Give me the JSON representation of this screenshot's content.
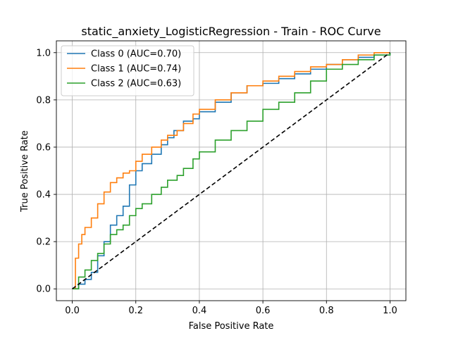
{
  "chart_data": {
    "type": "line",
    "title": "static_anxiety_LogisticRegression - Train - ROC Curve",
    "xlabel": "False Positive Rate",
    "ylabel": "True Positive Rate",
    "xlim": [
      -0.05,
      1.05
    ],
    "ylim": [
      -0.05,
      1.05
    ],
    "xticks": [
      "0.0",
      "0.2",
      "0.4",
      "0.6",
      "0.8",
      "1.0"
    ],
    "yticks": [
      "0.0",
      "0.2",
      "0.4",
      "0.6",
      "0.8",
      "1.0"
    ],
    "grid": true,
    "legend_position": "upper-left",
    "series": [
      {
        "name": "Class 0 (AUC=0.70)",
        "color": "#1f77b4",
        "x": [
          0.0,
          0.02,
          0.04,
          0.06,
          0.08,
          0.1,
          0.12,
          0.14,
          0.16,
          0.18,
          0.2,
          0.22,
          0.25,
          0.28,
          0.3,
          0.32,
          0.35,
          0.38,
          0.4,
          0.45,
          0.5,
          0.55,
          0.6,
          0.65,
          0.7,
          0.75,
          0.8,
          0.85,
          0.9,
          0.95,
          1.0
        ],
        "y": [
          0.0,
          0.02,
          0.04,
          0.07,
          0.14,
          0.2,
          0.27,
          0.31,
          0.35,
          0.44,
          0.5,
          0.53,
          0.57,
          0.61,
          0.64,
          0.67,
          0.71,
          0.72,
          0.75,
          0.79,
          0.83,
          0.86,
          0.87,
          0.89,
          0.91,
          0.93,
          0.95,
          0.97,
          0.98,
          0.99,
          1.0
        ]
      },
      {
        "name": "Class 1 (AUC=0.74)",
        "color": "#ff7f0e",
        "x": [
          0.0,
          0.01,
          0.02,
          0.03,
          0.04,
          0.06,
          0.08,
          0.1,
          0.12,
          0.14,
          0.16,
          0.18,
          0.2,
          0.22,
          0.25,
          0.28,
          0.3,
          0.33,
          0.35,
          0.38,
          0.4,
          0.45,
          0.5,
          0.55,
          0.6,
          0.65,
          0.7,
          0.75,
          0.8,
          0.85,
          0.9,
          0.95,
          1.0
        ],
        "y": [
          0.0,
          0.13,
          0.19,
          0.23,
          0.26,
          0.3,
          0.36,
          0.41,
          0.45,
          0.47,
          0.49,
          0.5,
          0.54,
          0.57,
          0.6,
          0.63,
          0.65,
          0.67,
          0.7,
          0.74,
          0.76,
          0.8,
          0.83,
          0.86,
          0.88,
          0.9,
          0.92,
          0.94,
          0.95,
          0.97,
          0.99,
          1.0,
          1.0
        ]
      },
      {
        "name": "Class 2 (AUC=0.63)",
        "color": "#2ca02c",
        "x": [
          0.0,
          0.02,
          0.04,
          0.06,
          0.08,
          0.1,
          0.12,
          0.14,
          0.16,
          0.18,
          0.2,
          0.22,
          0.25,
          0.28,
          0.3,
          0.33,
          0.35,
          0.38,
          0.4,
          0.45,
          0.5,
          0.55,
          0.6,
          0.65,
          0.7,
          0.75,
          0.8,
          0.85,
          0.9,
          0.95,
          1.0
        ],
        "y": [
          0.0,
          0.05,
          0.08,
          0.12,
          0.15,
          0.19,
          0.23,
          0.25,
          0.27,
          0.31,
          0.34,
          0.36,
          0.4,
          0.43,
          0.46,
          0.48,
          0.51,
          0.55,
          0.58,
          0.63,
          0.67,
          0.71,
          0.76,
          0.79,
          0.83,
          0.88,
          0.93,
          0.95,
          0.97,
          0.99,
          1.0
        ]
      },
      {
        "name": "",
        "color": "#000000",
        "style": "dashed",
        "x": [
          0.0,
          1.0
        ],
        "y": [
          0.0,
          1.0
        ]
      }
    ]
  }
}
